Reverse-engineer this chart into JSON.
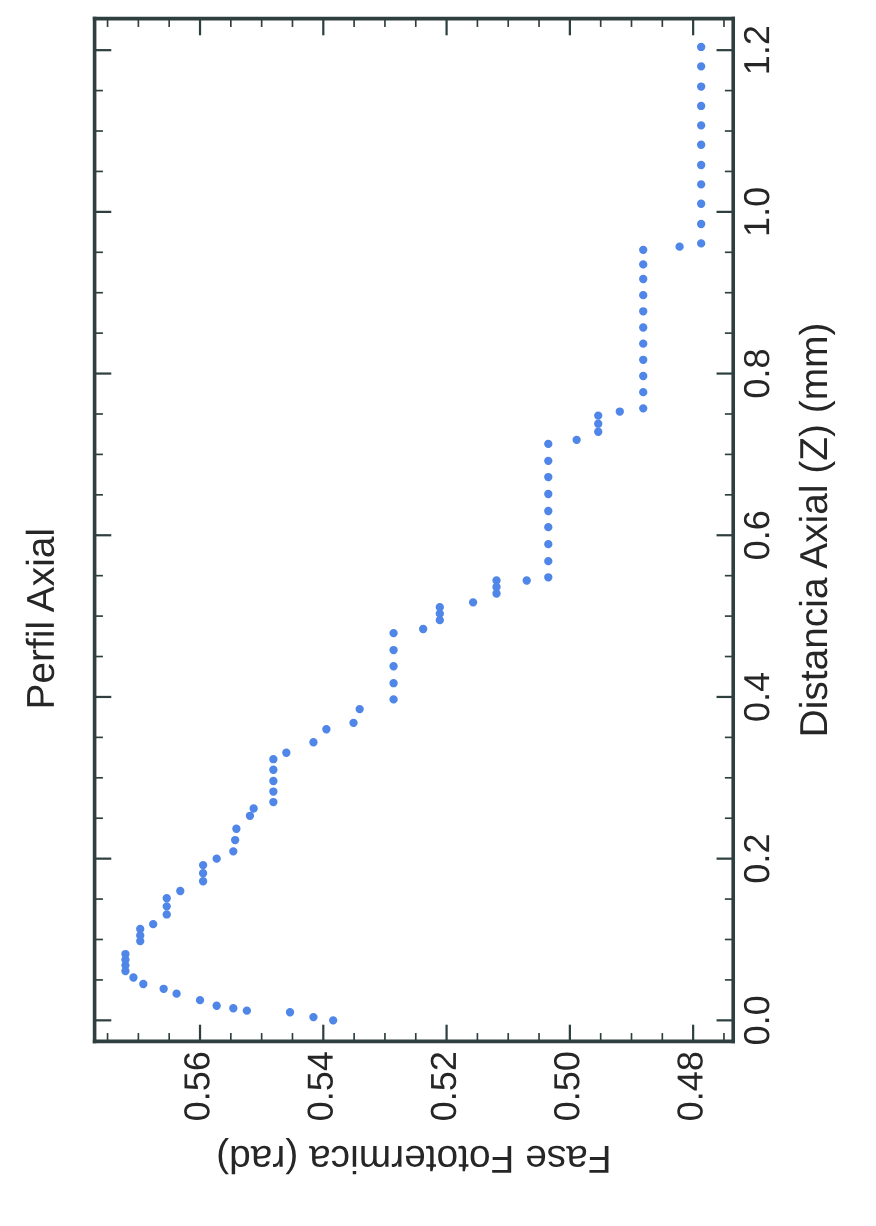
{
  "chart_data": {
    "type": "scatter",
    "title": "Perfil Axial",
    "xlabel": "Fase Fototermica (rad)",
    "ylabel": "Distancia Axial (Z) (mm)",
    "xlim": [
      0.5771,
      0.4735
    ],
    "xticks": [
      0.48,
      {
        "value": 0.5,
        "label": "0.50"
      },
      0.52,
      0.54,
      0.56
    ],
    "ylim": [
      -0.026,
      1.239
    ],
    "yticks": [
      {
        "value": 0,
        "label": "0.0"
      },
      0.2,
      0.4,
      0.6,
      0.8,
      {
        "value": 1,
        "label": "1.0"
      },
      1.2
    ],
    "marker": "circle",
    "grid": false,
    "legend": false,
    "series": [
      {
        "color": "#4f86e8",
        "x": [
          0.5384,
          0.5416,
          0.5454,
          0.5524,
          0.5546,
          0.5573,
          0.56,
          0.5638,
          0.5659,
          0.5692,
          0.5708,
          0.5721,
          0.5721,
          0.5721,
          0.5721,
          0.5697,
          0.5697,
          0.5697,
          0.5676,
          0.5654,
          0.5654,
          0.5654,
          0.5632,
          0.5595,
          0.5595,
          0.5595,
          0.5573,
          0.5546,
          0.5543,
          0.5541,
          0.5519,
          0.5513,
          0.5481,
          0.5481,
          0.5481,
          0.5481,
          0.5481,
          0.546,
          0.5416,
          0.5395,
          0.5351,
          0.5341,
          0.5286,
          0.5286,
          0.5286,
          0.5286,
          0.5286,
          0.5238,
          0.5211,
          0.5211,
          0.5211,
          0.5157,
          0.5119,
          0.5119,
          0.5119,
          0.507,
          0.5035,
          0.5035,
          0.5035,
          0.5035,
          0.5035,
          0.5035,
          0.5035,
          0.5035,
          0.5035,
          0.4989,
          0.4954,
          0.4954,
          0.4954,
          0.4919,
          0.4881,
          0.4881,
          0.4881,
          0.4881,
          0.4881,
          0.4881,
          0.4881,
          0.4881,
          0.4881,
          0.4881,
          0.4881,
          0.4822,
          0.4787,
          0.4787,
          0.4787,
          0.4787,
          0.4787,
          0.4787,
          0.4787,
          0.4787,
          0.4787,
          0.4787,
          0.4787
        ],
        "values": [
          0.0,
          0.004,
          0.01,
          0.012,
          0.015,
          0.018,
          0.025,
          0.033,
          0.039,
          0.045,
          0.053,
          0.061,
          0.068,
          0.075,
          0.082,
          0.098,
          0.105,
          0.113,
          0.119,
          0.131,
          0.141,
          0.151,
          0.16,
          0.172,
          0.182,
          0.192,
          0.2,
          0.209,
          0.223,
          0.237,
          0.253,
          0.262,
          0.27,
          0.283,
          0.296,
          0.31,
          0.323,
          0.331,
          0.344,
          0.36,
          0.368,
          0.385,
          0.397,
          0.417,
          0.438,
          0.458,
          0.479,
          0.484,
          0.495,
          0.503,
          0.511,
          0.517,
          0.528,
          0.536,
          0.544,
          0.544,
          0.548,
          0.568,
          0.589,
          0.61,
          0.63,
          0.651,
          0.672,
          0.692,
          0.713,
          0.718,
          0.728,
          0.738,
          0.748,
          0.753,
          0.757,
          0.777,
          0.797,
          0.817,
          0.837,
          0.857,
          0.877,
          0.897,
          0.917,
          0.935,
          0.953,
          0.957,
          0.961,
          0.985,
          1.01,
          1.034,
          1.058,
          1.083,
          1.107,
          1.131,
          1.155,
          1.18,
          1.204
        ]
      }
    ]
  }
}
